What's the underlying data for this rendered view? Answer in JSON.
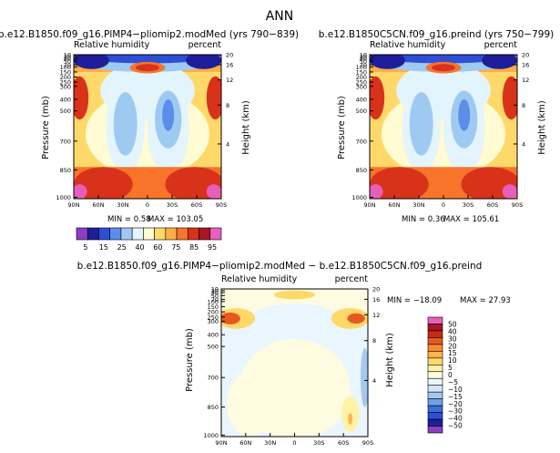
{
  "page": {
    "title": "ANN"
  },
  "colors": {
    "contour_fill": [
      "#8c3ec4",
      "#1e1e9a",
      "#2f4ed6",
      "#5a8ee8",
      "#9ecaf2",
      "#e3f4fd",
      "#fffbd2",
      "#fed96a",
      "#fdae47",
      "#f6752b",
      "#d9321b",
      "#a91522",
      "#e75fbb"
    ],
    "diff_fill": [
      "#8c3ec4",
      "#1e1e9a",
      "#2f4ed6",
      "#3a6fdd",
      "#6f9fe8",
      "#a6c9f1",
      "#d2e7fa",
      "#e9f6fd",
      "#fffbe0",
      "#fff2a6",
      "#fed96a",
      "#fdb44c",
      "#f98a34",
      "#e7591f",
      "#c92b19",
      "#a91522",
      "#e75fbb"
    ]
  },
  "chart_data": [
    {
      "type": "heatmap",
      "title": "b.e12.B1850.f09_g16.PlMP4−pliomip2.modMed (yrs 790−839)",
      "left_label": "Relative humidity",
      "right_label": "percent",
      "ylabel": "Pressure (mb)",
      "y2label": "Height (km)",
      "xticks": [
        "90N",
        "60N",
        "30N",
        "0",
        "30S",
        "60S",
        "90S"
      ],
      "yticks": [
        "10",
        "20",
        "30",
        "50",
        "70",
        "100",
        "150",
        "200",
        "250",
        "300",
        "400",
        "500",
        "700",
        "850",
        "1000"
      ],
      "y2ticks": [
        "20",
        "16",
        "12",
        "8",
        "4"
      ],
      "min_text": "MIN =   0.58",
      "max_text": "MAX = 103.05",
      "min": 0.58,
      "max": 103.05
    },
    {
      "type": "heatmap",
      "title": "b.e12.B1850C5CN.f09_g16.preind (yrs 750−799)",
      "left_label": "Relative humidity",
      "right_label": "percent",
      "ylabel": "Pressure (mb)",
      "y2label": "Height (km)",
      "xticks": [
        "90N",
        "60N",
        "30N",
        "0",
        "30S",
        "60S",
        "90S"
      ],
      "yticks": [
        "10",
        "20",
        "30",
        "50",
        "70",
        "100",
        "150",
        "200",
        "250",
        "300",
        "400",
        "500",
        "700",
        "850",
        "1000"
      ],
      "y2ticks": [
        "20",
        "16",
        "12",
        "8",
        "4"
      ],
      "min_text": "MIN =   0.36",
      "max_text": "MAX = 105.61",
      "min": 0.36,
      "max": 105.61
    },
    {
      "type": "heatmap",
      "title": "b.e12.B1850.f09_g16.PlMP4−pliomip2.modMed − b.e12.B1850C5CN.f09_g16.preind",
      "left_label": "Relative humidity",
      "right_label": "percent",
      "ylabel": "Pressure (mb)",
      "y2label": "Height (km)",
      "xticks": [
        "90N",
        "60N",
        "30N",
        "0",
        "30S",
        "60S",
        "90S"
      ],
      "yticks": [
        "10",
        "20",
        "30",
        "50",
        "70",
        "100",
        "150",
        "200",
        "250",
        "300",
        "400",
        "500",
        "700",
        "850",
        "1000"
      ],
      "y2ticks": [
        "20",
        "16",
        "12",
        "8",
        "4"
      ],
      "min_text": "MIN = −18.09",
      "max_text": "MAX =   27.93",
      "min": -18.09,
      "max": 27.93
    }
  ],
  "colorbars": {
    "shared": {
      "labels": [
        "5",
        "15",
        "25",
        "40",
        "60",
        "75",
        "85",
        "95"
      ]
    },
    "diff": {
      "labels": [
        "50",
        "40",
        "30",
        "20",
        "15",
        "10",
        "5",
        "0",
        "−5",
        "−10",
        "−15",
        "−20",
        "−30",
        "−40",
        "−50"
      ]
    }
  }
}
